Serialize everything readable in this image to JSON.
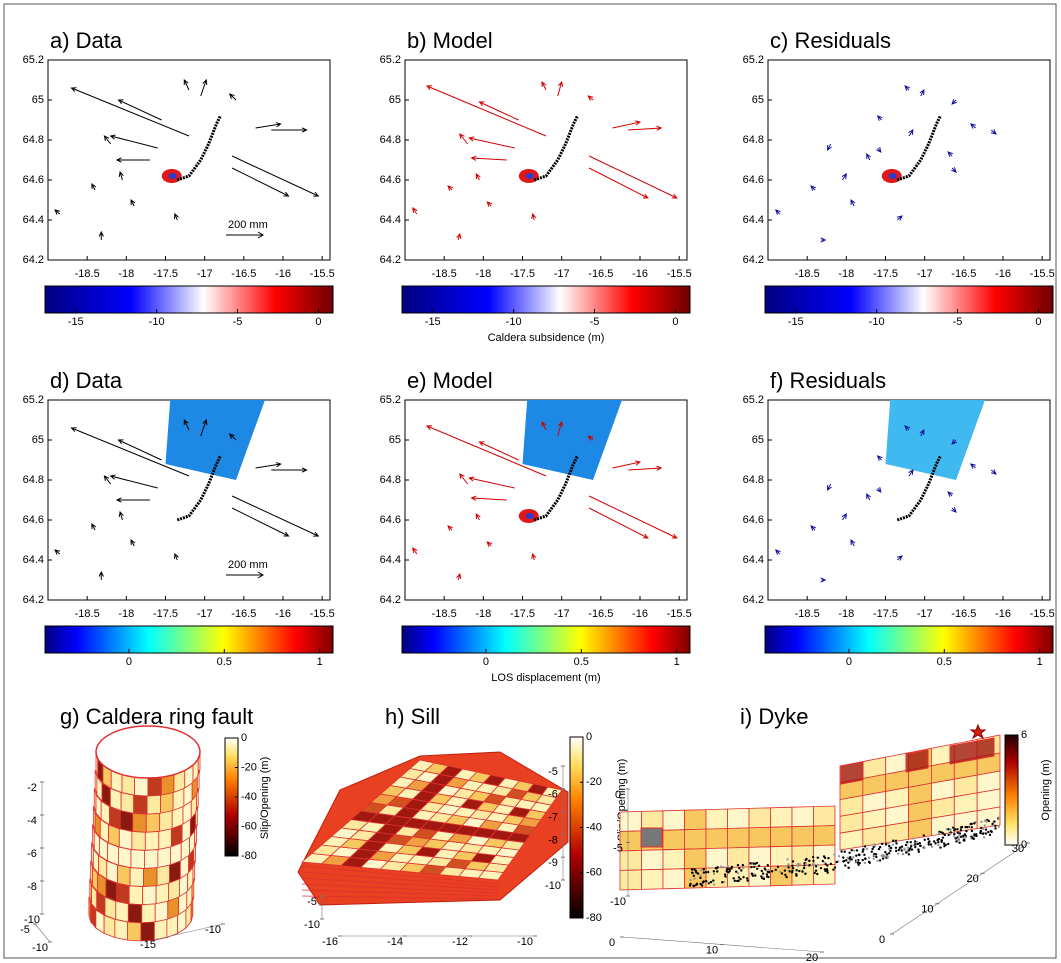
{
  "chart_data": [
    {
      "type": "quiver",
      "title": "a) Data",
      "xlim": [
        -19,
        -15.4
      ],
      "ylim": [
        64.2,
        65.2
      ],
      "xticks": [
        -18.5,
        -18,
        -17.5,
        -17,
        -16.5,
        -16,
        -15.5
      ],
      "yticks": [
        64.2,
        64.4,
        64.6,
        64.8,
        65,
        65.2
      ],
      "color": "#000000",
      "x": [
        -17.2,
        -17.55,
        -17.6,
        -17.7,
        -16.65,
        -16.65,
        -16.35,
        -16.15,
        -17.05,
        -17.2,
        -16.6,
        -18.05,
        -18.4,
        -18.85,
        -18.32,
        -17.35,
        -17.9,
        -18.2
      ],
      "y": [
        64.82,
        64.9,
        64.76,
        64.7,
        64.72,
        64.66,
        64.86,
        64.85,
        65.02,
        65.05,
        65.0,
        64.6,
        64.55,
        64.43,
        64.3,
        64.4,
        64.47,
        64.78
      ],
      "u": [
        -1.5,
        -0.55,
        -0.6,
        -0.42,
        1.1,
        0.72,
        0.32,
        0.45,
        0.07,
        -0.06,
        -0.08,
        -0.03,
        -0.04,
        -0.06,
        0.0,
        -0.03,
        -0.04,
        -0.08
      ],
      "v": [
        0.24,
        0.1,
        0.06,
        0.0,
        -0.2,
        -0.14,
        0.02,
        0.0,
        0.08,
        0.05,
        0.03,
        0.04,
        0.03,
        0.02,
        0.04,
        0.03,
        0.03,
        0.04
      ],
      "trace_x": [
        -17.35,
        -17.2,
        -17.05,
        -16.95,
        -16.85,
        -16.8
      ],
      "trace_y": [
        64.6,
        64.62,
        64.7,
        64.78,
        64.88,
        64.92
      ],
      "caldera": [
        -17.42,
        64.62
      ],
      "scale_label": "200 mm",
      "colorbar": {
        "colormap": "bwr",
        "clim": [
          -16.9,
          0.9
        ],
        "ticks": [
          -15,
          -10,
          -5,
          0
        ]
      }
    },
    {
      "type": "quiver",
      "title": "b) Model",
      "xlim": [
        -19,
        -15.4
      ],
      "ylim": [
        64.2,
        65.2
      ],
      "xticks": [
        -18.5,
        -18,
        -17.5,
        -17,
        -16.5,
        -16,
        -15.5
      ],
      "yticks": [
        64.2,
        64.4,
        64.6,
        64.8,
        65,
        65.2
      ],
      "color": "#d00000",
      "x": [
        -17.2,
        -17.55,
        -17.6,
        -17.7,
        -16.65,
        -16.65,
        -16.35,
        -16.15,
        -17.05,
        -17.2,
        -16.6,
        -18.05,
        -18.4,
        -18.85,
        -18.32,
        -17.35,
        -17.9,
        -18.2
      ],
      "y": [
        64.82,
        64.9,
        64.76,
        64.7,
        64.72,
        64.66,
        64.86,
        64.85,
        65.02,
        65.05,
        65.0,
        64.6,
        64.55,
        64.43,
        64.3,
        64.4,
        64.47,
        64.78
      ],
      "u": [
        -1.52,
        -0.5,
        -0.58,
        -0.45,
        1.12,
        0.75,
        0.35,
        0.42,
        0.05,
        -0.05,
        -0.06,
        -0.04,
        -0.05,
        -0.05,
        0.02,
        -0.02,
        -0.05,
        -0.1
      ],
      "v": [
        0.25,
        0.09,
        0.05,
        0.01,
        -0.21,
        -0.15,
        0.03,
        0.01,
        0.07,
        0.04,
        0.02,
        0.03,
        0.02,
        0.03,
        0.03,
        0.03,
        0.02,
        0.05
      ],
      "trace_x": [
        -17.35,
        -17.2,
        -17.05,
        -16.95,
        -16.85,
        -16.8
      ],
      "trace_y": [
        64.6,
        64.62,
        64.7,
        64.78,
        64.88,
        64.92
      ],
      "caldera": [
        -17.42,
        64.62
      ],
      "colorbar": {
        "colormap": "bwr",
        "clim": [
          -16.9,
          0.9
        ],
        "ticks": [
          -15,
          -10,
          -5,
          0
        ],
        "label": "Caldera subsidence (m)"
      }
    },
    {
      "type": "quiver",
      "title": "c) Residuals",
      "xlim": [
        -19,
        -15.4
      ],
      "ylim": [
        64.2,
        65.2
      ],
      "xticks": [
        -18.5,
        -18,
        -17.5,
        -17,
        -16.5,
        -16,
        -15.5
      ],
      "yticks": [
        64.2,
        64.4,
        64.6,
        64.8,
        65,
        65.2
      ],
      "color": "#1010a0",
      "x": [
        -17.2,
        -17.55,
        -17.6,
        -17.7,
        -16.65,
        -16.65,
        -16.35,
        -16.15,
        -17.05,
        -17.2,
        -16.6,
        -18.05,
        -18.4,
        -18.85,
        -18.32,
        -17.35,
        -17.9,
        -18.2
      ],
      "y": [
        64.82,
        64.9,
        64.76,
        64.7,
        64.72,
        64.66,
        64.86,
        64.85,
        65.02,
        65.05,
        65.0,
        64.6,
        64.55,
        64.43,
        64.3,
        64.4,
        64.47,
        64.78
      ],
      "u": [
        0.05,
        -0.05,
        0.04,
        -0.04,
        -0.05,
        0.05,
        -0.06,
        0.06,
        0.04,
        -0.05,
        -0.05,
        0.05,
        -0.05,
        -0.05,
        0.05,
        0.06,
        -0.04,
        -0.04
      ],
      "v": [
        0.03,
        0.02,
        -0.02,
        0.03,
        0.02,
        -0.02,
        0.02,
        -0.02,
        0.03,
        0.02,
        -0.02,
        0.03,
        0.02,
        0.02,
        0.0,
        0.02,
        0.03,
        -0.03
      ],
      "trace_x": [
        -17.35,
        -17.2,
        -17.05,
        -16.95,
        -16.85,
        -16.8
      ],
      "trace_y": [
        64.6,
        64.62,
        64.7,
        64.78,
        64.88,
        64.92
      ],
      "caldera": [
        -17.42,
        64.62
      ],
      "colorbar": {
        "colormap": "bwr",
        "clim": [
          -16.9,
          0.9
        ],
        "ticks": [
          -15,
          -10,
          -5,
          0
        ]
      }
    },
    {
      "type": "quiver",
      "title": "d) Data",
      "xlim": [
        -19,
        -15.4
      ],
      "ylim": [
        64.2,
        65.2
      ],
      "xticks": [
        -18.5,
        -18,
        -17.5,
        -17,
        -16.5,
        -16,
        -15.5
      ],
      "yticks": [
        64.2,
        64.4,
        64.6,
        64.8,
        65,
        65.2
      ],
      "color": "#000000",
      "x": [
        -17.2,
        -17.55,
        -17.6,
        -17.7,
        -16.65,
        -16.65,
        -16.35,
        -16.15,
        -17.05,
        -17.2,
        -16.6,
        -18.05,
        -18.4,
        -18.85,
        -18.32,
        -17.35,
        -17.9,
        -18.2
      ],
      "y": [
        64.82,
        64.9,
        64.76,
        64.7,
        64.72,
        64.66,
        64.86,
        64.85,
        65.02,
        65.05,
        65.0,
        64.6,
        64.55,
        64.43,
        64.3,
        64.4,
        64.47,
        64.78
      ],
      "u": [
        -1.5,
        -0.55,
        -0.6,
        -0.42,
        1.1,
        0.72,
        0.32,
        0.45,
        0.07,
        -0.06,
        -0.08,
        -0.03,
        -0.04,
        -0.06,
        0.0,
        -0.03,
        -0.04,
        -0.08
      ],
      "v": [
        0.24,
        0.1,
        0.06,
        0.0,
        -0.2,
        -0.14,
        0.02,
        0.0,
        0.08,
        0.05,
        0.03,
        0.04,
        0.03,
        0.02,
        0.04,
        0.03,
        0.03,
        0.04
      ],
      "trace_x": [
        -17.35,
        -17.2,
        -17.05,
        -16.95,
        -16.85,
        -16.8
      ],
      "trace_y": [
        64.6,
        64.62,
        64.7,
        64.78,
        64.88,
        64.92
      ],
      "swath_x": [
        -17.44,
        -16.23,
        -16.6,
        -17.5
      ],
      "swath_y": [
        65.2,
        65.2,
        64.8,
        64.88
      ],
      "swath_color": "#1e88e5",
      "scale_label": "200 mm",
      "colorbar": {
        "colormap": "jet",
        "clim": [
          -0.44,
          1.07
        ],
        "ticks": [
          0,
          0.5,
          1
        ]
      }
    },
    {
      "type": "quiver",
      "title": "e) Model",
      "xlim": [
        -19,
        -15.4
      ],
      "ylim": [
        64.2,
        65.2
      ],
      "xticks": [
        -18.5,
        -18,
        -17.5,
        -17,
        -16.5,
        -16,
        -15.5
      ],
      "yticks": [
        64.2,
        64.4,
        64.6,
        64.8,
        65,
        65.2
      ],
      "color": "#d00000",
      "x": [
        -17.2,
        -17.55,
        -17.6,
        -17.7,
        -16.65,
        -16.65,
        -16.35,
        -16.15,
        -17.05,
        -17.2,
        -16.6,
        -18.05,
        -18.4,
        -18.85,
        -18.32,
        -17.35,
        -17.9,
        -18.2
      ],
      "y": [
        64.82,
        64.9,
        64.76,
        64.7,
        64.72,
        64.66,
        64.86,
        64.85,
        65.02,
        65.05,
        65.0,
        64.6,
        64.55,
        64.43,
        64.3,
        64.4,
        64.47,
        64.78
      ],
      "u": [
        -1.52,
        -0.5,
        -0.58,
        -0.45,
        1.12,
        0.75,
        0.35,
        0.42,
        0.05,
        -0.05,
        -0.06,
        -0.04,
        -0.05,
        -0.05,
        0.02,
        -0.02,
        -0.05,
        -0.1
      ],
      "v": [
        0.25,
        0.09,
        0.05,
        0.01,
        -0.21,
        -0.15,
        0.03,
        0.01,
        0.07,
        0.04,
        0.02,
        0.03,
        0.02,
        0.03,
        0.03,
        0.03,
        0.02,
        0.05
      ],
      "trace_x": [
        -17.35,
        -17.2,
        -17.05,
        -16.95,
        -16.85,
        -16.8
      ],
      "trace_y": [
        64.6,
        64.62,
        64.7,
        64.78,
        64.88,
        64.92
      ],
      "swath_x": [
        -17.44,
        -16.23,
        -16.6,
        -17.5
      ],
      "swath_y": [
        65.2,
        65.2,
        64.8,
        64.88
      ],
      "swath_color": "#1e88e5",
      "caldera": [
        -17.42,
        64.62
      ],
      "colorbar": {
        "colormap": "jet",
        "clim": [
          -0.44,
          1.07
        ],
        "ticks": [
          0,
          0.5,
          1
        ],
        "label": "LOS displacement (m)"
      }
    },
    {
      "type": "quiver",
      "title": "f) Residuals",
      "xlim": [
        -19,
        -15.4
      ],
      "ylim": [
        64.2,
        65.2
      ],
      "xticks": [
        -18.5,
        -18,
        -17.5,
        -17,
        -16.5,
        -16,
        -15.5
      ],
      "yticks": [
        64.2,
        64.4,
        64.6,
        64.8,
        65,
        65.2
      ],
      "color": "#1010a0",
      "x": [
        -17.2,
        -17.55,
        -17.6,
        -17.7,
        -16.65,
        -16.65,
        -16.35,
        -16.15,
        -17.05,
        -17.2,
        -16.6,
        -18.05,
        -18.4,
        -18.85,
        -18.32,
        -17.35,
        -17.9,
        -18.2
      ],
      "y": [
        64.82,
        64.9,
        64.76,
        64.7,
        64.72,
        64.66,
        64.86,
        64.85,
        65.02,
        65.05,
        65.0,
        64.6,
        64.55,
        64.43,
        64.3,
        64.4,
        64.47,
        64.78
      ],
      "u": [
        0.05,
        -0.05,
        0.04,
        -0.04,
        -0.05,
        0.05,
        -0.06,
        0.06,
        0.04,
        -0.05,
        -0.05,
        0.05,
        -0.05,
        -0.05,
        0.05,
        0.06,
        -0.04,
        -0.04
      ],
      "v": [
        0.03,
        0.02,
        -0.02,
        0.03,
        0.02,
        -0.02,
        0.02,
        -0.02,
        0.03,
        0.02,
        -0.02,
        0.03,
        0.02,
        0.02,
        0.0,
        0.02,
        0.03,
        -0.03
      ],
      "trace_x": [
        -17.35,
        -17.2,
        -17.05,
        -16.95,
        -16.85,
        -16.8
      ],
      "trace_y": [
        64.6,
        64.62,
        64.7,
        64.78,
        64.88,
        64.92
      ],
      "swath_x": [
        -17.44,
        -16.23,
        -16.6,
        -17.5
      ],
      "swath_y": [
        65.2,
        65.2,
        64.8,
        64.88
      ],
      "swath_color": "#40b8f0",
      "colorbar": {
        "colormap": "jet",
        "clim": [
          -0.44,
          1.07
        ],
        "ticks": [
          0,
          0.5,
          1
        ]
      }
    },
    {
      "type": "surface3d",
      "title": "g) Caldera ring fault",
      "xlim": [
        -5,
        -10
      ],
      "xticks": [
        -5,
        -10
      ],
      "ylim": [
        -15,
        -10
      ],
      "yticks": [
        -15,
        -10
      ],
      "zlim": [
        -2,
        -10
      ],
      "zticks": [
        -2,
        -4,
        -6,
        -8,
        -10
      ],
      "colorbar": {
        "colormap": "hot",
        "clim": [
          -80,
          0
        ],
        "ticks": [
          0,
          -20,
          -40,
          -60,
          -80
        ],
        "label": "Slip/Opening (m)"
      }
    },
    {
      "type": "surface3d",
      "title": "h) Sill",
      "xlim": [
        -16,
        -10
      ],
      "xticks": [
        -16,
        -14,
        -12,
        -10
      ],
      "ylim": [
        -5,
        -10
      ],
      "yticks": [
        -5,
        -10
      ],
      "zlim": [
        -5,
        -10
      ],
      "zticks": [
        -5,
        -6,
        -7,
        -8,
        -9,
        -10
      ],
      "colorbar": {
        "colormap": "hot",
        "clim": [
          -80,
          0
        ],
        "ticks": [
          0,
          -20,
          -40,
          -60,
          -80
        ],
        "label": "Slip/Opening (m)"
      }
    },
    {
      "type": "surface3d",
      "title": "i) Dyke",
      "xlim": [
        0,
        20
      ],
      "xticks": [
        0,
        10,
        20
      ],
      "ylim": [
        0,
        30
      ],
      "yticks": [
        0,
        10,
        20,
        30
      ],
      "zlim": [
        0,
        -10
      ],
      "zticks": [
        0,
        -5,
        -10
      ],
      "colorbar": {
        "colormap": "hot_r",
        "clim": [
          0,
          6
        ],
        "ticks": [
          6,
          0
        ],
        "label": "Opening (m)"
      }
    }
  ]
}
